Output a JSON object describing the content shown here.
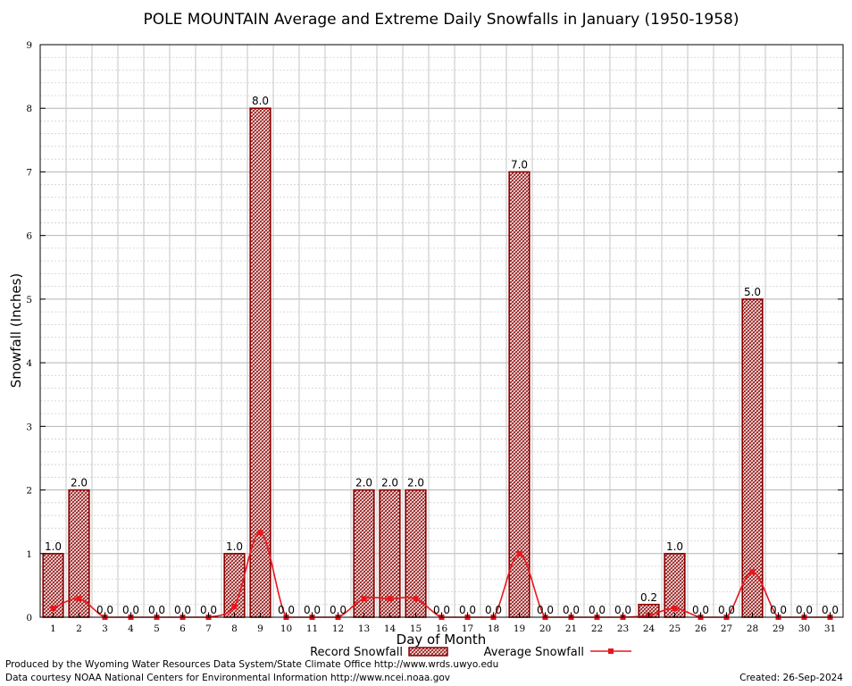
{
  "chart_data": {
    "type": "bar",
    "title": "POLE MOUNTAIN Average and Extreme Daily Snowfalls in January (1950-1958)",
    "xlabel": "Day of Month",
    "ylabel": "Snowfall (Inches)",
    "ylim": [
      0,
      9
    ],
    "yticks": [
      "0",
      "1",
      "2",
      "3",
      "4",
      "5",
      "6",
      "7",
      "8",
      "9"
    ],
    "categories": [
      "1",
      "2",
      "3",
      "4",
      "5",
      "6",
      "7",
      "8",
      "9",
      "10",
      "11",
      "12",
      "13",
      "14",
      "15",
      "16",
      "17",
      "18",
      "19",
      "20",
      "21",
      "22",
      "23",
      "24",
      "25",
      "26",
      "27",
      "28",
      "29",
      "30",
      "31"
    ],
    "series": [
      {
        "name": "Record Snowfall",
        "kind": "bar",
        "color": "#8b0000",
        "values": [
          1.0,
          2.0,
          0.0,
          0.0,
          0.0,
          0.0,
          0.0,
          1.0,
          8.0,
          0.0,
          0.0,
          0.0,
          2.0,
          2.0,
          2.0,
          0.0,
          0.0,
          0.0,
          7.0,
          0.0,
          0.0,
          0.0,
          0.0,
          0.2,
          1.0,
          0.0,
          0.0,
          5.0,
          0.0,
          0.0,
          0.0
        ],
        "labels": [
          "1.0",
          "2.0",
          "0.0",
          "0.0",
          "0.0",
          "0.0",
          "0.0",
          "1.0",
          "8.0",
          "0.0",
          "0.0",
          "0.0",
          "2.0",
          "2.0",
          "2.0",
          "0.0",
          "0.0",
          "0.0",
          "7.0",
          "0.0",
          "0.0",
          "0.0",
          "0.0",
          "0.2",
          "1.0",
          "0.0",
          "0.0",
          "5.0",
          "0.0",
          "0.0",
          "0.0"
        ]
      },
      {
        "name": "Average Snowfall",
        "kind": "line",
        "color": "#e8161b",
        "values": [
          0.14,
          0.29,
          0.0,
          0.0,
          0.0,
          0.0,
          0.0,
          0.17,
          1.33,
          0.0,
          0.0,
          0.0,
          0.29,
          0.29,
          0.29,
          0.0,
          0.0,
          0.0,
          1.0,
          0.0,
          0.0,
          0.0,
          0.0,
          0.03,
          0.14,
          0.0,
          0.0,
          0.71,
          0.0,
          0.0,
          0.0
        ]
      }
    ],
    "grid": true,
    "legend": "bottom-center"
  },
  "footer": {
    "produced_by": "Produced by the Wyoming Water Resources Data System/State Climate Office http://www.wrds.uwyo.edu",
    "courtesy": "Data courtesy NOAA National Centers for Environmental Information http://www.ncei.noaa.gov",
    "created": "Created:  26-Sep-2024"
  }
}
